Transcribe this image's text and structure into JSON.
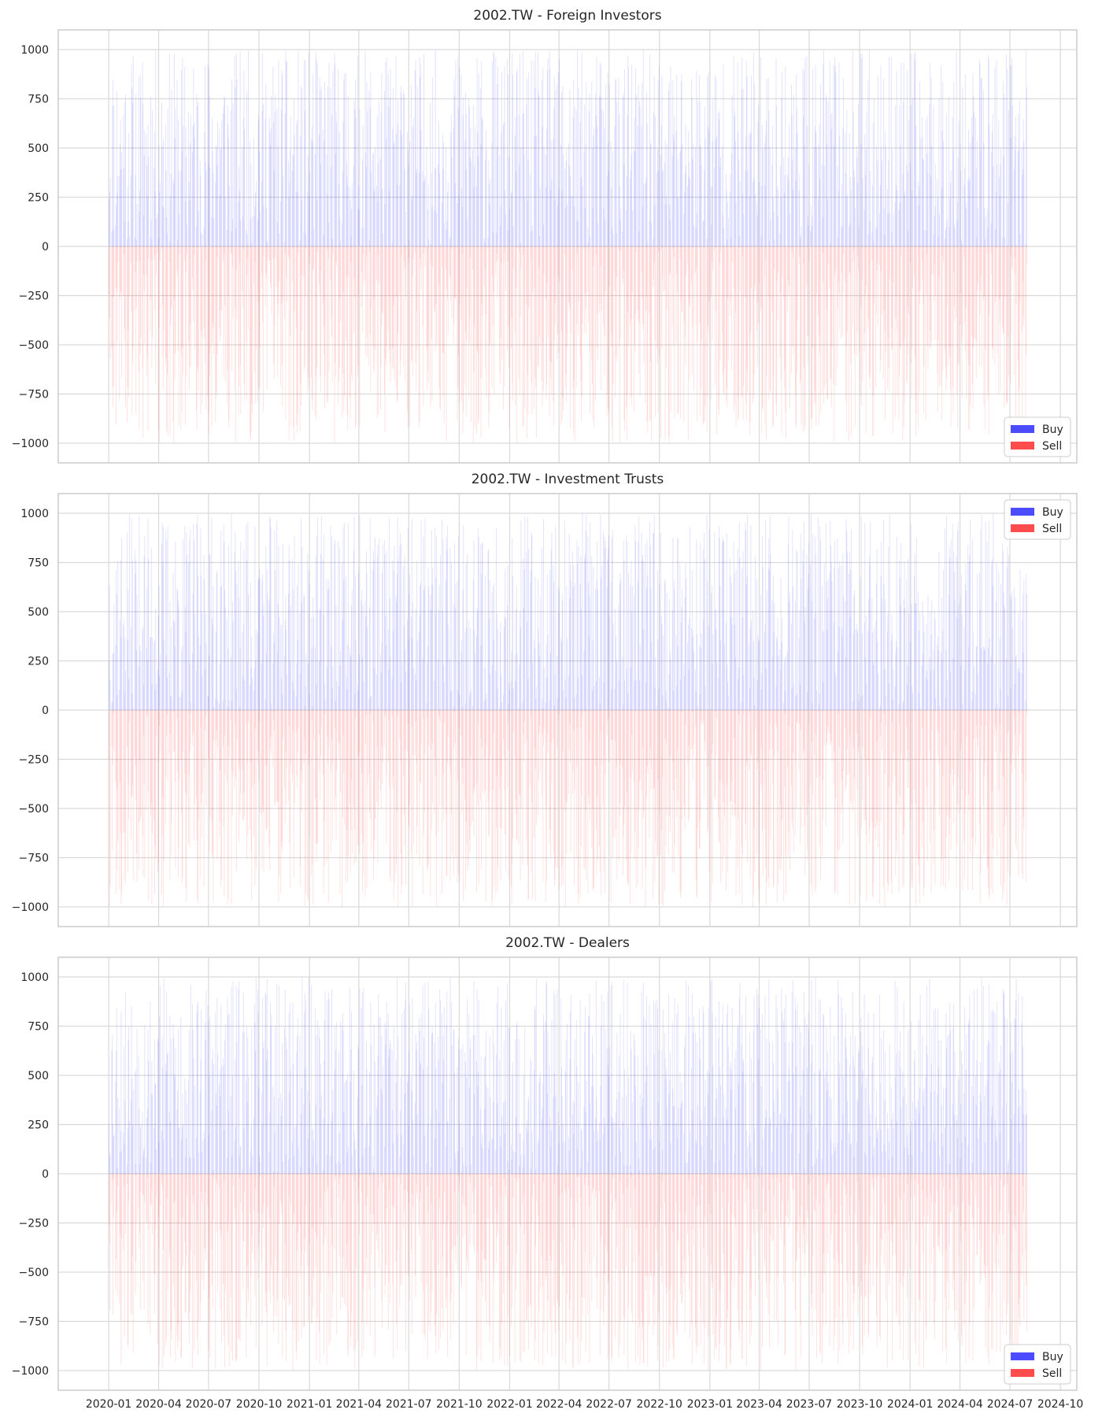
{
  "colors": {
    "buy": "#0000ff",
    "sell": "#ff0000",
    "buy_alpha": 0.12,
    "sell_alpha": 0.12,
    "legend_alpha": 0.7
  },
  "chart_data": [
    {
      "type": "bar",
      "title": "2002.TW - Foreign Investors",
      "xlabel": "",
      "ylabel": "",
      "x_range": [
        "2020-01-01",
        "2024-07-31"
      ],
      "ylim": [
        -1100,
        1100
      ],
      "yticks": [
        -1000,
        -750,
        -500,
        -250,
        0,
        250,
        500,
        750,
        1000
      ],
      "grid": true,
      "legend_position": "lower-right",
      "legend": [
        "Buy",
        "Sell"
      ],
      "series": [
        {
          "name": "Buy",
          "sign": 1,
          "range": [
            0,
            1000
          ],
          "seed": 11
        },
        {
          "name": "Sell",
          "sign": -1,
          "range": [
            0,
            1000
          ],
          "seed": 23
        }
      ]
    },
    {
      "type": "bar",
      "title": "2002.TW - Investment Trusts",
      "xlabel": "",
      "ylabel": "",
      "x_range": [
        "2020-01-01",
        "2024-07-31"
      ],
      "ylim": [
        -1100,
        1100
      ],
      "yticks": [
        -1000,
        -750,
        -500,
        -250,
        0,
        250,
        500,
        750,
        1000
      ],
      "grid": true,
      "legend_position": "upper-right",
      "legend": [
        "Buy",
        "Sell"
      ],
      "series": [
        {
          "name": "Buy",
          "sign": 1,
          "range": [
            0,
            1000
          ],
          "seed": 37
        },
        {
          "name": "Sell",
          "sign": -1,
          "range": [
            0,
            1000
          ],
          "seed": 41
        }
      ]
    },
    {
      "type": "bar",
      "title": "2002.TW - Dealers",
      "xlabel": "",
      "ylabel": "",
      "x_range": [
        "2020-01-01",
        "2024-07-31"
      ],
      "ylim": [
        -1100,
        1100
      ],
      "yticks": [
        -1000,
        -750,
        -500,
        -250,
        0,
        250,
        500,
        750,
        1000
      ],
      "grid": true,
      "legend_position": "lower-right",
      "legend": [
        "Buy",
        "Sell"
      ],
      "series": [
        {
          "name": "Buy",
          "sign": 1,
          "range": [
            0,
            1000
          ],
          "seed": 53
        },
        {
          "name": "Sell",
          "sign": -1,
          "range": [
            0,
            1000
          ],
          "seed": 67
        }
      ]
    }
  ],
  "x_ticks": [
    "2020-01",
    "2020-04",
    "2020-07",
    "2020-10",
    "2021-01",
    "2021-04",
    "2021-07",
    "2021-10",
    "2022-01",
    "2022-04",
    "2022-07",
    "2022-10",
    "2023-01",
    "2023-04",
    "2023-07",
    "2023-10",
    "2024-01",
    "2024-04",
    "2024-07",
    "2024-10"
  ]
}
